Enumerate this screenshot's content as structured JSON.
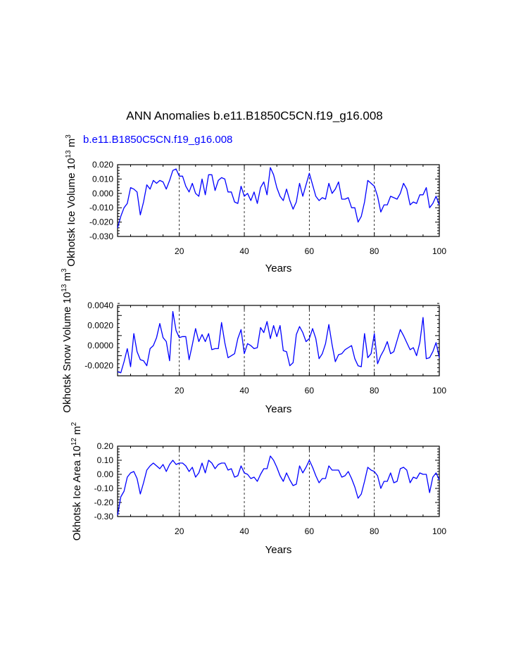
{
  "figure": {
    "title": "ANN Anomalies b.e11.B1850C5CN.f19_g16.008",
    "subtitle": "b.e11.B1850C5CN.f19_g16.008"
  },
  "colors": {
    "line": "#0000ff",
    "axis": "#000000",
    "subtitle": "#0000ff"
  },
  "chart_data": [
    {
      "type": "line",
      "title": "",
      "xlabel": "Years",
      "ylabel": "Okhotsk Ice Volume 10",
      "ylabel_sup": "13",
      "ylabel_unit": "m",
      "ylabel_unit_sup": "3",
      "xlim": [
        1,
        100
      ],
      "ylim": [
        -0.03,
        0.02
      ],
      "xticks": [
        20,
        40,
        60,
        80,
        100
      ],
      "yticks": [
        -0.03,
        -0.02,
        -0.01,
        0.0,
        0.01,
        0.02
      ],
      "ytick_labels": [
        "-0.030",
        "-0.020",
        "-0.010",
        "0.000",
        "0.010",
        "0.020"
      ],
      "vlines": [
        20,
        40,
        60,
        80
      ],
      "series": [
        {
          "values": [
            -0.024,
            -0.016,
            -0.01,
            -0.007,
            0.004,
            0.003,
            0.001,
            -0.015,
            -0.006,
            0.006,
            0.003,
            0.009,
            0.007,
            0.009,
            0.008,
            0.003,
            0.009,
            0.016,
            0.017,
            0.012,
            0.012,
            0.005,
            0.001,
            0.007,
            0.0,
            -0.002,
            0.01,
            -0.001,
            0.013,
            0.013,
            0.002,
            0.009,
            0.011,
            0.01,
            0.001,
            0.001,
            -0.006,
            -0.007,
            0.005,
            -0.002,
            0.0,
            -0.005,
            0.001,
            -0.007,
            0.004,
            0.008,
            -0.001,
            0.018,
            0.013,
            0.004,
            -0.002,
            -0.005,
            0.003,
            -0.005,
            -0.011,
            -0.006,
            0.007,
            -0.002,
            0.006,
            0.014,
            0.006,
            -0.002,
            -0.005,
            -0.003,
            -0.004,
            0.007,
            0.0,
            0.003,
            0.008,
            -0.004,
            -0.004,
            -0.003,
            -0.01,
            -0.01,
            -0.02,
            -0.016,
            -0.006,
            0.009,
            0.007,
            0.005,
            -0.002,
            -0.013,
            -0.008,
            -0.008,
            -0.002,
            -0.003,
            -0.004,
            0.0,
            0.007,
            0.003,
            -0.008,
            -0.006,
            -0.007,
            -0.001,
            -0.001,
            0.004,
            -0.01,
            -0.007,
            -0.002,
            -0.008
          ]
        }
      ]
    },
    {
      "type": "line",
      "title": "",
      "xlabel": "Years",
      "ylabel": "Okhotsk Snow Volume 10",
      "ylabel_sup": "13",
      "ylabel_unit": "m",
      "ylabel_unit_sup": "3",
      "xlim": [
        1,
        100
      ],
      "ylim": [
        -0.003,
        0.004
      ],
      "xticks": [
        20,
        40,
        60,
        80,
        100
      ],
      "yticks": [
        -0.002,
        0.0,
        0.002,
        0.004
      ],
      "ytick_labels": [
        "-0.0020",
        "0.0000",
        "0.0020",
        "0.0040"
      ],
      "vlines": [
        20,
        40,
        60,
        80
      ],
      "series": [
        {
          "values": [
            -0.0026,
            -0.0027,
            -0.0016,
            -0.0003,
            -0.0021,
            0.0012,
            -0.0006,
            -0.0014,
            -0.0015,
            -0.002,
            -0.0003,
            0.0,
            0.0008,
            0.0022,
            0.0008,
            0.0004,
            -0.0015,
            0.0034,
            0.0015,
            0.0008,
            0.0009,
            0.0009,
            -0.0014,
            0.0001,
            0.0017,
            0.0004,
            0.0011,
            0.0004,
            0.0012,
            -0.0004,
            -0.0003,
            -0.0003,
            0.0023,
            0.0003,
            -0.0012,
            -0.001,
            -0.0008,
            0.0007,
            0.0016,
            -0.0008,
            0.0002,
            0.0,
            -0.0003,
            -0.0002,
            0.0018,
            0.0013,
            0.0024,
            0.0007,
            0.002,
            0.0009,
            0.002,
            -0.0005,
            -0.0006,
            -0.002,
            -0.0017,
            0.0011,
            0.0019,
            0.0013,
            0.0004,
            0.0007,
            0.0017,
            0.0007,
            -0.0013,
            -0.0008,
            0.0002,
            0.0021,
            0.0001,
            -0.0016,
            -0.0009,
            -0.0008,
            -0.0004,
            -0.0002,
            0.0,
            -0.0013,
            -0.002,
            -0.0021,
            0.0012,
            -0.0012,
            -0.0008,
            0.0012,
            -0.0018,
            -0.001,
            -0.0004,
            0.0004,
            -0.0008,
            -0.0006,
            0.0005,
            0.0016,
            0.001,
            0.0003,
            -0.0004,
            -0.0002,
            -0.001,
            0.0003,
            0.0028,
            -0.0013,
            -0.0012,
            -0.0006,
            0.0003,
            -0.0012
          ]
        }
      ]
    },
    {
      "type": "line",
      "title": "",
      "xlabel": "Years",
      "ylabel": "Okhotsk Ice Area 10",
      "ylabel_sup": "12",
      "ylabel_unit": "m",
      "ylabel_unit_sup": "2",
      "xlim": [
        1,
        100
      ],
      "ylim": [
        -0.3,
        0.2
      ],
      "xticks": [
        20,
        40,
        60,
        80,
        100
      ],
      "yticks": [
        -0.3,
        -0.2,
        -0.1,
        0.0,
        0.1,
        0.2
      ],
      "ytick_labels": [
        "-0.30",
        "-0.20",
        "-0.10",
        "0.00",
        "0.10",
        "0.20"
      ],
      "vlines": [
        20,
        40,
        60,
        80
      ],
      "series": [
        {
          "values": [
            -0.29,
            -0.16,
            -0.12,
            -0.02,
            0.01,
            0.02,
            -0.03,
            -0.14,
            -0.06,
            0.03,
            0.06,
            0.08,
            0.06,
            0.04,
            0.07,
            0.02,
            0.07,
            0.1,
            0.07,
            0.08,
            0.08,
            0.06,
            0.02,
            0.05,
            -0.02,
            0.01,
            0.08,
            0.01,
            0.1,
            0.08,
            0.04,
            0.07,
            0.08,
            0.08,
            0.03,
            0.04,
            -0.02,
            -0.01,
            0.06,
            0.01,
            0.0,
            -0.03,
            -0.02,
            -0.05,
            0.0,
            0.04,
            0.04,
            0.13,
            0.1,
            0.05,
            -0.01,
            -0.05,
            0.01,
            -0.04,
            -0.08,
            -0.07,
            0.06,
            0.01,
            0.05,
            0.1,
            0.05,
            -0.01,
            -0.06,
            -0.03,
            -0.03,
            0.06,
            0.03,
            0.03,
            0.03,
            -0.02,
            -0.01,
            0.02,
            -0.03,
            -0.09,
            -0.17,
            -0.14,
            -0.05,
            0.05,
            0.03,
            0.02,
            -0.01,
            -0.1,
            -0.05,
            -0.05,
            0.01,
            -0.06,
            -0.05,
            0.04,
            0.05,
            0.03,
            -0.06,
            -0.02,
            -0.03,
            0.01,
            0.0,
            0.0,
            -0.13,
            -0.02,
            0.01,
            -0.04
          ]
        }
      ]
    }
  ]
}
